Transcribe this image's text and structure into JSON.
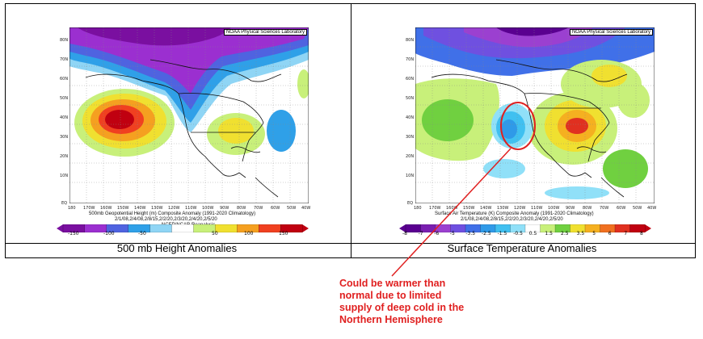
{
  "left_panel": {
    "credit": "NOAA Physical Sciences Laboratory",
    "plot_title": "500mb Geopotential Height (m) Composite Anomaly (1991-2020 Climatology)",
    "plot_dates": "2/1/08,2/4/08,2/8/15,2/2/20,2/3/20,2/4/20,2/5/20",
    "plot_source": "NCEP/NCAR Reanalysis",
    "caption": "500 mb Height Anomalies",
    "colorbar_labels": [
      "-150",
      "-100",
      "-50",
      "50",
      "100",
      "150"
    ],
    "colorbar_colors": [
      "#7a0fa0",
      "#9b2fd0",
      "#4f63e0",
      "#2fa0e8",
      "#8fd5f5",
      "#ffffff",
      "#c8f07a",
      "#f0e030",
      "#f5a020",
      "#f04020",
      "#c00010"
    ]
  },
  "right_panel": {
    "credit": "NOAA Physical Sciences Laboratory",
    "plot_title": "Surface Air Temperature (K) Composite Anomaly (1991-2020 Climatology)",
    "plot_dates": "2/1/08,2/4/08,2/8/15,2/2/20,2/3/20,2/4/20,2/5/20",
    "caption": "Surface Temperature Anomalies",
    "colorbar_labels": [
      "-8",
      "-7",
      "-6",
      "-5",
      "-3.5",
      "-2.5",
      "-1.5",
      "-0.5",
      "0.5",
      "1.5",
      "2.5",
      "3.5",
      "5",
      "6",
      "7",
      "8"
    ],
    "colorbar_colors": [
      "#5a0090",
      "#7a1fb0",
      "#9b40d0",
      "#6f50e0",
      "#4070e8",
      "#2f9ae8",
      "#40c0f0",
      "#90e0f8",
      "#ffffff",
      "#c8f07a",
      "#70d040",
      "#f0e030",
      "#f5b020",
      "#f07020",
      "#e03020",
      "#c00010"
    ]
  },
  "axes": {
    "lat_labels": [
      "80N",
      "70N",
      "60N",
      "50N",
      "40N",
      "30N",
      "20N",
      "10N",
      "EQ"
    ],
    "lon_labels": [
      "180",
      "170W",
      "160W",
      "150W",
      "140W",
      "130W",
      "120W",
      "110W",
      "100W",
      "90W",
      "80W",
      "70W",
      "60W",
      "50W",
      "40W"
    ]
  },
  "annotation": {
    "text_lines": [
      "Could be warmer than",
      "normal due to limited",
      "supply of deep cold in the",
      "Northern Hemisphere"
    ],
    "color": "#e02020"
  }
}
